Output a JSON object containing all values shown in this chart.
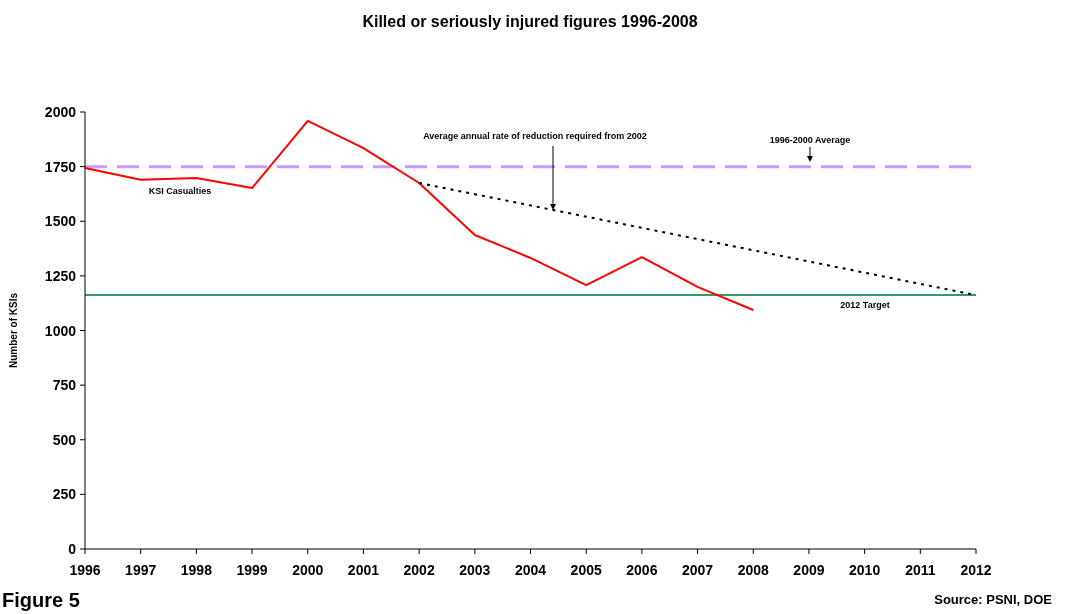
{
  "chart_data": {
    "type": "line",
    "title": "Killed or seriously injured figures 1996-2008",
    "ylabel": "Number of KSIs",
    "x": [
      1996,
      1997,
      1998,
      1999,
      2000,
      2001,
      2002,
      2003,
      2004,
      2005,
      2006,
      2007,
      2008
    ],
    "series": [
      {
        "name": "KSI Casualties",
        "color": "#ff0000",
        "values": [
          1744,
          1690,
          1698,
          1652,
          1959,
          1835,
          1675,
          1437,
          1332,
          1208,
          1336,
          1200,
          1094
        ]
      },
      {
        "name": "Average annual rate of reduction required from 2002",
        "type": "line",
        "color": "#000000",
        "line_style": "dotted",
        "x": [
          2002,
          2012
        ],
        "values": [
          1675,
          1162
        ]
      }
    ],
    "xlim": [
      1996,
      2012
    ],
    "xticks": [
      1996,
      1997,
      1998,
      1999,
      2000,
      2001,
      2002,
      2003,
      2004,
      2005,
      2006,
      2007,
      2008,
      2009,
      2010,
      2011,
      2012
    ],
    "ylim": [
      0,
      2000
    ],
    "yticks": [
      0,
      250,
      500,
      750,
      1000,
      1250,
      1500,
      1750,
      2000
    ],
    "ref_lines": [
      {
        "axis": "y",
        "value": 1750,
        "label": "1996-2000 Average",
        "color": "#cc99ff",
        "line_style": "dashed"
      },
      {
        "axis": "y",
        "value": 1162,
        "label": "2012 Target",
        "color": "#339966",
        "line_style": "solid"
      }
    ],
    "annotations": [
      "Figure 5",
      "Source: PSNI, DOE"
    ],
    "grid": false,
    "line_style": "solid",
    "marker": "none"
  }
}
